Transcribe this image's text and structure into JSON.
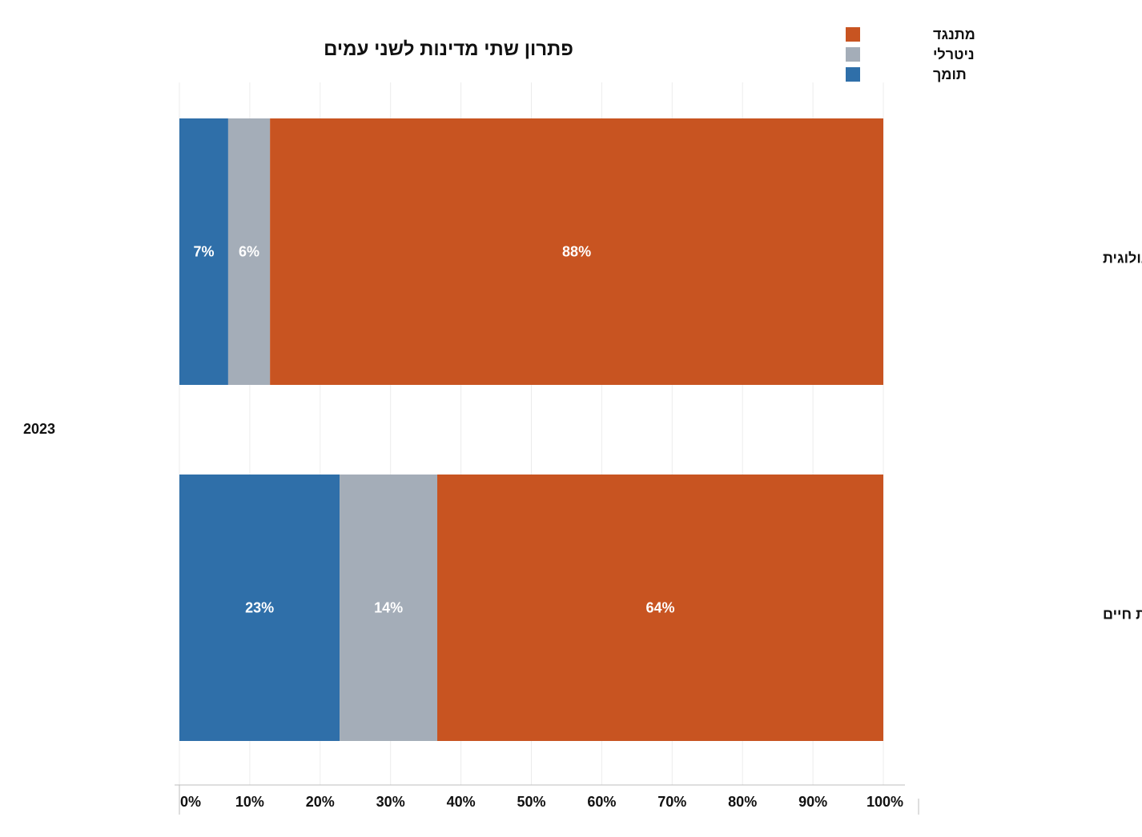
{
  "chart_data": {
    "type": "bar",
    "orientation": "horizontal",
    "stacked": true,
    "normalized": true,
    "title": "פתרון שתי מדינות לשני עמים",
    "group_label": "2023",
    "categories": [
      "התיישבות אידיאולוגית",
      "התיישבות איכות חיים"
    ],
    "series": [
      {
        "name": "תומך",
        "color": "#2f6fa9",
        "values": [
          7,
          23
        ],
        "labels": [
          "7%",
          "23%"
        ]
      },
      {
        "name": "ניטרלי",
        "color": "#a4adb8",
        "values": [
          6,
          14
        ],
        "labels": [
          "6%",
          "14%"
        ]
      },
      {
        "name": "מתנגד",
        "color": "#c85421",
        "values": [
          88,
          64
        ],
        "labels": [
          "88%",
          "64%"
        ]
      }
    ],
    "legend_order": [
      "מתנגד",
      "ניטרלי",
      "תומך"
    ],
    "legend_position": "top-right",
    "x_ticks": [
      "0%",
      "10%",
      "20%",
      "30%",
      "40%",
      "50%",
      "60%",
      "70%",
      "80%",
      "90%",
      "100%"
    ],
    "xlim": [
      0,
      100
    ],
    "grid": true,
    "xlabel": "",
    "ylabel": ""
  }
}
